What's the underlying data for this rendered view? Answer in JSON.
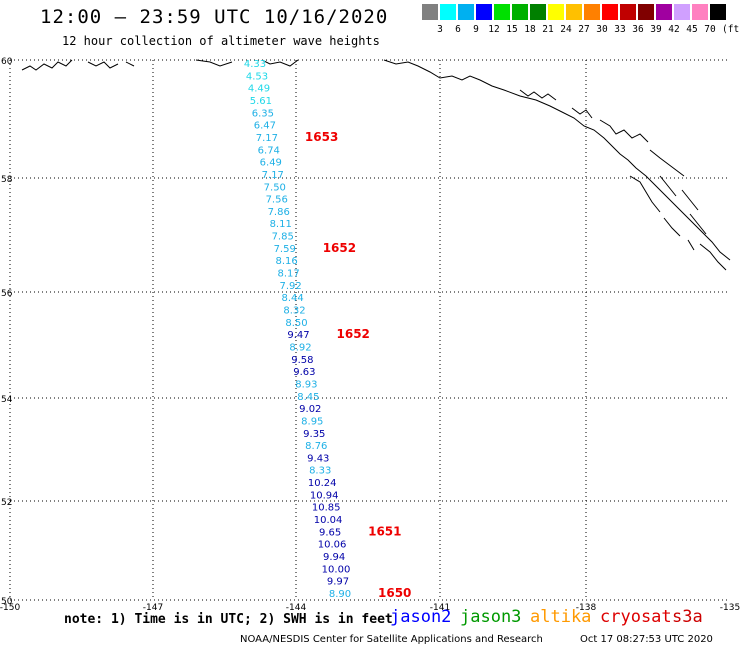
{
  "header": {
    "title": "12:00 – 23:59 UTC 10/16/2020",
    "subtitle": "12 hour collection of altimeter wave heights"
  },
  "legend": {
    "colors": [
      "#808080",
      "#00ffff",
      "#00b0f0",
      "#0000ff",
      "#00e000",
      "#00b000",
      "#008000",
      "#ffff00",
      "#ffc000",
      "#ff8000",
      "#ff0000",
      "#c00000",
      "#800000",
      "#a000a0",
      "#d0a0ff",
      "#ff80c0",
      "#000000"
    ],
    "labels": [
      "3",
      "6",
      "9",
      "12",
      "15",
      "18",
      "21",
      "24",
      "27",
      "30",
      "33",
      "36",
      "39",
      "42",
      "45",
      "70"
    ],
    "unit": "(ft)"
  },
  "axes": {
    "lat_labels": [
      "50",
      "52",
      "54",
      "56",
      "58",
      "60"
    ],
    "lon_labels": [
      "-150",
      "-147",
      "-144",
      "-141",
      "-138",
      "-135"
    ]
  },
  "track": {
    "colors": {
      "light": "#1eb0e6",
      "cyan": "#20d8e8",
      "dark": "#0000a8",
      "time": "#ee0000"
    },
    "points": [
      {
        "v": "4.33",
        "c": "cyan"
      },
      {
        "v": "4.53",
        "c": "cyan"
      },
      {
        "v": "4.49",
        "c": "cyan"
      },
      {
        "v": "5.61",
        "c": "cyan"
      },
      {
        "v": "6.35",
        "c": "light"
      },
      {
        "v": "6.47",
        "c": "light"
      },
      {
        "v": "7.17",
        "c": "light"
      },
      {
        "v": "6.74",
        "c": "light"
      },
      {
        "v": "6.49",
        "c": "light"
      },
      {
        "v": "7.17",
        "c": "light"
      },
      {
        "v": "7.50",
        "c": "light"
      },
      {
        "v": "7.56",
        "c": "light"
      },
      {
        "v": "7.86",
        "c": "light"
      },
      {
        "v": "8.11",
        "c": "light"
      },
      {
        "v": "7.85",
        "c": "light"
      },
      {
        "v": "7.59",
        "c": "light"
      },
      {
        "v": "8.16",
        "c": "light"
      },
      {
        "v": "8.17",
        "c": "light"
      },
      {
        "v": "7.92",
        "c": "light"
      },
      {
        "v": "8.44",
        "c": "light"
      },
      {
        "v": "8.32",
        "c": "light"
      },
      {
        "v": "8.50",
        "c": "light"
      },
      {
        "v": "9.47",
        "c": "dark"
      },
      {
        "v": "8.92",
        "c": "light"
      },
      {
        "v": "9.58",
        "c": "dark"
      },
      {
        "v": "9.63",
        "c": "dark"
      },
      {
        "v": "8.93",
        "c": "light"
      },
      {
        "v": "8.45",
        "c": "light"
      },
      {
        "v": "9.02",
        "c": "dark"
      },
      {
        "v": "8.95",
        "c": "light"
      },
      {
        "v": "9.35",
        "c": "dark"
      },
      {
        "v": "8.76",
        "c": "light"
      },
      {
        "v": "9.43",
        "c": "dark"
      },
      {
        "v": "8.33",
        "c": "light"
      },
      {
        "v": "10.24",
        "c": "dark"
      },
      {
        "v": "10.94",
        "c": "dark"
      },
      {
        "v": "10.85",
        "c": "dark"
      },
      {
        "v": "10.04",
        "c": "dark"
      },
      {
        "v": "9.65",
        "c": "dark"
      },
      {
        "v": "10.06",
        "c": "dark"
      },
      {
        "v": "9.94",
        "c": "dark"
      },
      {
        "v": "10.00",
        "c": "dark"
      },
      {
        "v": "9.97",
        "c": "dark"
      },
      {
        "v": "8.90",
        "c": "light"
      }
    ],
    "times": [
      {
        "label": "1653",
        "after": 6
      },
      {
        "label": "1652",
        "after": 15
      },
      {
        "label": "1652",
        "after": 22
      },
      {
        "label": "1651",
        "after": 38
      },
      {
        "label": "1650",
        "after": 43
      }
    ]
  },
  "footer": {
    "note": "note: 1) Time is in UTC; 2) SWH is in feet",
    "satellites": [
      {
        "name": "jason2",
        "color": "#0000ff"
      },
      {
        "name": "jason3",
        "color": "#009900"
      },
      {
        "name": "altika",
        "color": "#ff9900"
      },
      {
        "name": "cryosat",
        "color": "#dd0000"
      },
      {
        "name": "s3a",
        "color": "#cc0000"
      }
    ],
    "credit": "NOAA/NESDIS Center for Satellite Applications and Research",
    "timestamp": "Oct 17 08:27:53 UTC 2020"
  }
}
